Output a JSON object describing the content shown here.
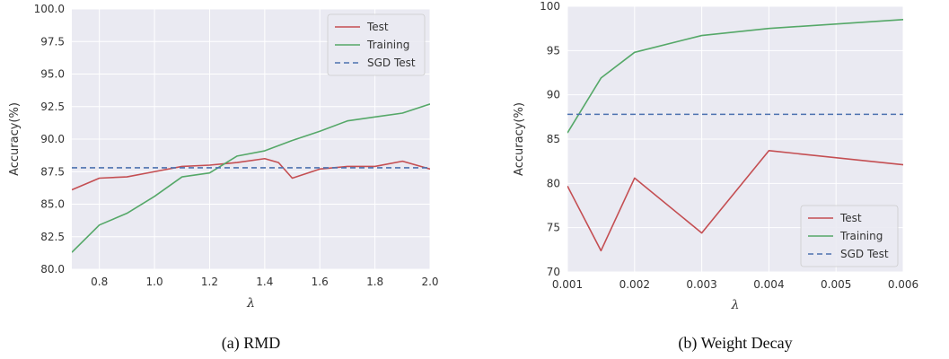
{
  "colors": {
    "panel_bg": "#eaeaf2",
    "grid": "#ffffff",
    "test": "#c44e52",
    "training": "#55a868",
    "sgd_test": "#4c72b0"
  },
  "chart_data": [
    {
      "type": "line",
      "caption": "(a) RMD",
      "xlabel": "λ",
      "ylabel": "Accuracy(%)",
      "xlim": [
        0.7,
        2.0
      ],
      "ylim": [
        80.0,
        100.0
      ],
      "xticks": [
        0.8,
        1.0,
        1.2,
        1.4,
        1.6,
        1.8,
        2.0
      ],
      "xtick_labels": [
        "0.8",
        "1.0",
        "1.2",
        "1.4",
        "1.6",
        "1.8",
        "2.0"
      ],
      "yticks": [
        80.0,
        82.5,
        85.0,
        87.5,
        90.0,
        92.5,
        95.0,
        97.5,
        100.0
      ],
      "ytick_labels": [
        "80.0",
        "82.5",
        "85.0",
        "87.5",
        "90.0",
        "92.5",
        "95.0",
        "97.5",
        "100.0"
      ],
      "grid": true,
      "legend_position": "top-right",
      "series": [
        {
          "name": "Test",
          "color_key": "test",
          "style": "solid",
          "x": [
            0.7,
            0.8,
            0.9,
            1.0,
            1.1,
            1.2,
            1.3,
            1.4,
            1.45,
            1.5,
            1.6,
            1.7,
            1.8,
            1.9,
            2.0
          ],
          "y": [
            86.1,
            87.0,
            87.1,
            87.5,
            87.9,
            88.0,
            88.2,
            88.5,
            88.2,
            87.0,
            87.7,
            87.9,
            87.9,
            88.3,
            87.7
          ]
        },
        {
          "name": "Training",
          "color_key": "training",
          "style": "solid",
          "x": [
            0.7,
            0.8,
            0.9,
            1.0,
            1.1,
            1.2,
            1.3,
            1.4,
            1.5,
            1.6,
            1.7,
            1.8,
            1.9,
            2.0
          ],
          "y": [
            81.3,
            83.4,
            84.3,
            85.6,
            87.1,
            87.4,
            88.7,
            89.1,
            89.9,
            90.6,
            91.4,
            91.7,
            92.0,
            92.7
          ]
        },
        {
          "name": "SGD Test",
          "color_key": "sgd_test",
          "style": "dashed",
          "x": [
            0.7,
            2.0
          ],
          "y": [
            87.8,
            87.8
          ]
        }
      ]
    },
    {
      "type": "line",
      "caption": "(b) Weight Decay",
      "xlabel": "λ",
      "ylabel": "Accuracy(%)",
      "xlim": [
        0.001,
        0.006
      ],
      "ylim": [
        70,
        100
      ],
      "xticks": [
        0.001,
        0.002,
        0.003,
        0.004,
        0.005,
        0.006
      ],
      "xtick_labels": [
        "0.001",
        "0.002",
        "0.003",
        "0.004",
        "0.005",
        "0.006"
      ],
      "yticks": [
        70,
        75,
        80,
        85,
        90,
        95,
        100
      ],
      "ytick_labels": [
        "70",
        "75",
        "80",
        "85",
        "90",
        "95",
        "100"
      ],
      "grid": true,
      "legend_position": "bottom-right",
      "series": [
        {
          "name": "Test",
          "color_key": "test",
          "style": "solid",
          "x": [
            0.001,
            0.0015,
            0.002,
            0.003,
            0.004,
            0.006
          ],
          "y": [
            79.7,
            72.4,
            80.6,
            74.4,
            83.7,
            82.1
          ]
        },
        {
          "name": "Training",
          "color_key": "training",
          "style": "solid",
          "x": [
            0.001,
            0.0015,
            0.002,
            0.003,
            0.004,
            0.006
          ],
          "y": [
            85.7,
            91.9,
            94.8,
            96.7,
            97.5,
            98.5
          ]
        },
        {
          "name": "SGD Test",
          "color_key": "sgd_test",
          "style": "dashed",
          "x": [
            0.001,
            0.006
          ],
          "y": [
            87.8,
            87.8
          ]
        }
      ]
    }
  ]
}
